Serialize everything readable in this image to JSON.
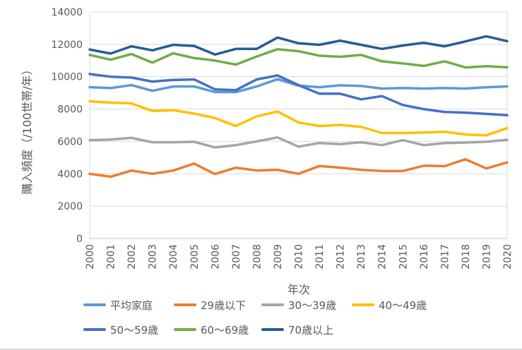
{
  "chart_data": {
    "type": "line",
    "title": "",
    "xlabel": "年次",
    "ylabel": "購入頻度（/100世帯/年）",
    "ylim": [
      0,
      14000
    ],
    "y_ticks": [
      0,
      2000,
      4000,
      6000,
      8000,
      10000,
      12000,
      14000
    ],
    "grid": true,
    "legend_position": "bottom",
    "x": [
      "2000",
      "2001",
      "2002",
      "2003",
      "2004",
      "2005",
      "2006",
      "2007",
      "2008",
      "2009",
      "2010",
      "2011",
      "2012",
      "2013",
      "2014",
      "2015",
      "2016",
      "2017",
      "2018",
      "2019",
      "2020"
    ],
    "series": [
      {
        "name": "平均家庭",
        "color": "#5b9bd5",
        "values": [
          9350,
          9300,
          9480,
          9130,
          9400,
          9400,
          9050,
          9050,
          9400,
          9850,
          9450,
          9350,
          9470,
          9430,
          9270,
          9300,
          9270,
          9300,
          9270,
          9350,
          9400
        ]
      },
      {
        "name": "29歳以下",
        "color": "#ed7d31",
        "values": [
          4000,
          3820,
          4200,
          4000,
          4200,
          4630,
          3980,
          4380,
          4200,
          4250,
          4000,
          4480,
          4380,
          4250,
          4170,
          4170,
          4500,
          4470,
          4900,
          4330,
          4700
        ]
      },
      {
        "name": "30〜39歳",
        "color": "#a5a5a5",
        "values": [
          6080,
          6120,
          6220,
          5950,
          5950,
          5980,
          5630,
          5770,
          6000,
          6250,
          5680,
          5900,
          5830,
          5950,
          5770,
          6080,
          5770,
          5900,
          5930,
          5980,
          6100
        ]
      },
      {
        "name": "40〜49歳",
        "color": "#ffc000",
        "values": [
          8480,
          8400,
          8350,
          7880,
          7930,
          7720,
          7450,
          6950,
          7550,
          7850,
          7170,
          6950,
          7020,
          6900,
          6520,
          6520,
          6550,
          6600,
          6430,
          6380,
          6820
        ]
      },
      {
        "name": "50〜59歳",
        "color": "#4472c4",
        "values": [
          10170,
          10000,
          9950,
          9700,
          9800,
          9830,
          9220,
          9170,
          9830,
          10080,
          9480,
          8950,
          8950,
          8600,
          8800,
          8250,
          8000,
          7820,
          7780,
          7700,
          7620
        ]
      },
      {
        "name": "60〜69歳",
        "color": "#70ad47",
        "values": [
          11350,
          11050,
          11400,
          10870,
          11450,
          11150,
          11000,
          10750,
          11250,
          11700,
          11580,
          11300,
          11230,
          11350,
          10950,
          10820,
          10670,
          10950,
          10570,
          10650,
          10580
        ]
      },
      {
        "name": "70歳以上",
        "color": "#255e91",
        "values": [
          11680,
          11430,
          11880,
          11630,
          11970,
          11900,
          11370,
          11720,
          11720,
          12420,
          12070,
          11970,
          12230,
          11970,
          11720,
          11930,
          12100,
          11880,
          12180,
          12500,
          12200
        ]
      }
    ]
  }
}
